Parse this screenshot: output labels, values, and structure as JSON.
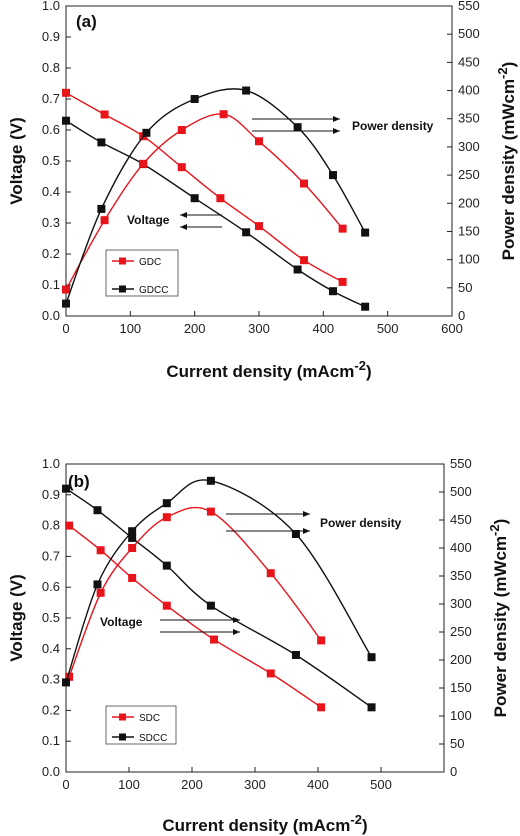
{
  "chart_data": [
    {
      "type": "scatter",
      "panel_label": "(a)",
      "xlabel": "Current density (mAcm",
      "xlabel_sup": "-2",
      "xlabel_close": ")",
      "ylabel_left": "Voltage (V)",
      "ylabel_right": "Power density (mWcm",
      "ylabel_right_sup": "-2",
      "ylabel_right_close": ")",
      "xlim": [
        0,
        600
      ],
      "xticks": [
        0,
        100,
        200,
        300,
        400,
        500,
        600
      ],
      "ylim_left": [
        0.0,
        1.0
      ],
      "yticks_left": [
        0.0,
        0.1,
        0.2,
        0.3,
        0.4,
        0.5,
        0.6,
        0.7,
        0.8,
        0.9,
        1.0
      ],
      "ylim_right": [
        0,
        550
      ],
      "yticks_right": [
        0,
        50,
        100,
        150,
        200,
        250,
        300,
        350,
        400,
        450,
        500,
        550
      ],
      "grid": false,
      "legend": "bottom-left",
      "annotations": {
        "voltage": "Voltage",
        "power": "Power density"
      },
      "series": [
        {
          "name": "GDC",
          "color": "#e8141b",
          "axis": "left",
          "role": "voltage",
          "x": [
            0,
            60,
            120,
            180,
            240,
            300,
            370,
            430
          ],
          "y": [
            0.72,
            0.65,
            0.58,
            0.48,
            0.38,
            0.29,
            0.18,
            0.11
          ]
        },
        {
          "name": "GDCC",
          "color": "#111111",
          "axis": "left",
          "role": "voltage",
          "x": [
            0,
            55,
            120,
            200,
            280,
            360,
            415,
            465
          ],
          "y": [
            0.63,
            0.56,
            0.49,
            0.38,
            0.27,
            0.15,
            0.08,
            0.03
          ]
        },
        {
          "name": "GDC",
          "color": "#e8141b",
          "axis": "right",
          "role": "power",
          "x": [
            0,
            60,
            120,
            180,
            245,
            300,
            370,
            430
          ],
          "y": [
            47,
            170,
            270,
            330,
            358,
            310,
            235,
            155
          ]
        },
        {
          "name": "GDCC",
          "color": "#111111",
          "axis": "right",
          "role": "power",
          "x": [
            0,
            55,
            125,
            200,
            280,
            360,
            415,
            465
          ],
          "y": [
            22,
            190,
            325,
            385,
            400,
            335,
            250,
            148
          ]
        }
      ]
    },
    {
      "type": "scatter",
      "panel_label": "(b)",
      "xlabel": "Current density (mAcm",
      "xlabel_sup": "-2",
      "xlabel_close": ")",
      "ylabel_left": "Voltage (V)",
      "ylabel_right": "Power density (mWcm",
      "ylabel_right_sup": "-2",
      "ylabel_right_close": ")",
      "xlim": [
        0,
        600
      ],
      "xticks": [
        0,
        100,
        200,
        300,
        400,
        500
      ],
      "ylim_left": [
        0.0,
        1.0
      ],
      "yticks_left": [
        0.0,
        0.1,
        0.2,
        0.3,
        0.4,
        0.5,
        0.6,
        0.7,
        0.8,
        0.9,
        1.0
      ],
      "ylim_right": [
        0,
        550
      ],
      "yticks_right": [
        0,
        50,
        100,
        150,
        200,
        250,
        300,
        350,
        400,
        450,
        500,
        550
      ],
      "grid": false,
      "legend": "bottom-left",
      "annotations": {
        "voltage": "Voltage",
        "power": "Power density"
      },
      "series": [
        {
          "name": "SDC",
          "color": "#e8141b",
          "axis": "left",
          "role": "voltage",
          "x": [
            5,
            55,
            105,
            160,
            235,
            325,
            405
          ],
          "y": [
            0.8,
            0.72,
            0.63,
            0.54,
            0.43,
            0.32,
            0.21
          ]
        },
        {
          "name": "SDCC",
          "color": "#111111",
          "axis": "left",
          "role": "voltage",
          "x": [
            0,
            50,
            105,
            160,
            230,
            365,
            485
          ],
          "y": [
            0.92,
            0.85,
            0.76,
            0.67,
            0.54,
            0.38,
            0.21
          ]
        },
        {
          "name": "SDC",
          "color": "#e8141b",
          "axis": "right",
          "role": "power",
          "x": [
            5,
            55,
            105,
            160,
            230,
            325,
            405
          ],
          "y": [
            170,
            320,
            400,
            455,
            465,
            355,
            235
          ]
        },
        {
          "name": "SDCC",
          "color": "#111111",
          "axis": "right",
          "role": "power",
          "x": [
            0,
            50,
            105,
            160,
            230,
            365,
            485
          ],
          "y": [
            160,
            335,
            430,
            480,
            520,
            425,
            205
          ]
        }
      ]
    }
  ]
}
